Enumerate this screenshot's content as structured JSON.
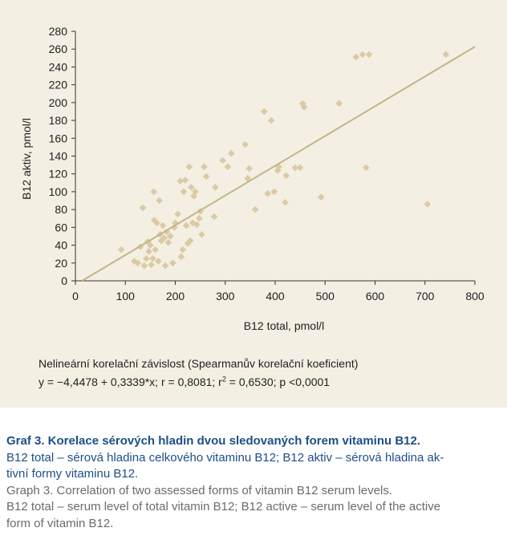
{
  "chart_data": {
    "type": "scatter",
    "xlabel": "B12 total, pmol/l",
    "ylabel": "B12 aktiv, pmol/l",
    "xlim": [
      0,
      800
    ],
    "ylim": [
      0,
      280
    ],
    "xticks": [
      0,
      100,
      200,
      300,
      400,
      500,
      600,
      700,
      800
    ],
    "yticks": [
      0,
      20,
      40,
      60,
      80,
      100,
      120,
      140,
      160,
      180,
      200,
      220,
      240,
      260,
      280
    ],
    "grid": false,
    "point_color": "#dccaa4",
    "line_color": "#c3b58a",
    "regression": {
      "intercept": -4.4478,
      "slope": 0.3339
    },
    "points": [
      {
        "x": 92,
        "y": 35
      },
      {
        "x": 118,
        "y": 22
      },
      {
        "x": 125,
        "y": 20
      },
      {
        "x": 130,
        "y": 38
      },
      {
        "x": 135,
        "y": 82
      },
      {
        "x": 138,
        "y": 17
      },
      {
        "x": 142,
        "y": 25
      },
      {
        "x": 145,
        "y": 44
      },
      {
        "x": 147,
        "y": 33
      },
      {
        "x": 150,
        "y": 40
      },
      {
        "x": 152,
        "y": 18
      },
      {
        "x": 155,
        "y": 25
      },
      {
        "x": 157,
        "y": 100
      },
      {
        "x": 158,
        "y": 68
      },
      {
        "x": 160,
        "y": 35
      },
      {
        "x": 163,
        "y": 65
      },
      {
        "x": 166,
        "y": 22
      },
      {
        "x": 168,
        "y": 90
      },
      {
        "x": 170,
        "y": 52
      },
      {
        "x": 172,
        "y": 45
      },
      {
        "x": 175,
        "y": 62
      },
      {
        "x": 178,
        "y": 48
      },
      {
        "x": 180,
        "y": 17
      },
      {
        "x": 183,
        "y": 55
      },
      {
        "x": 186,
        "y": 43
      },
      {
        "x": 190,
        "y": 50
      },
      {
        "x": 195,
        "y": 20
      },
      {
        "x": 198,
        "y": 60
      },
      {
        "x": 200,
        "y": 65
      },
      {
        "x": 205,
        "y": 75
      },
      {
        "x": 210,
        "y": 112
      },
      {
        "x": 212,
        "y": 27
      },
      {
        "x": 215,
        "y": 35
      },
      {
        "x": 217,
        "y": 100
      },
      {
        "x": 220,
        "y": 113
      },
      {
        "x": 222,
        "y": 62
      },
      {
        "x": 225,
        "y": 42
      },
      {
        "x": 228,
        "y": 128
      },
      {
        "x": 230,
        "y": 45
      },
      {
        "x": 232,
        "y": 105
      },
      {
        "x": 235,
        "y": 65
      },
      {
        "x": 237,
        "y": 95
      },
      {
        "x": 240,
        "y": 100
      },
      {
        "x": 243,
        "y": 63
      },
      {
        "x": 248,
        "y": 70
      },
      {
        "x": 250,
        "y": 78
      },
      {
        "x": 253,
        "y": 52
      },
      {
        "x": 258,
        "y": 128
      },
      {
        "x": 262,
        "y": 117
      },
      {
        "x": 278,
        "y": 72
      },
      {
        "x": 280,
        "y": 105
      },
      {
        "x": 295,
        "y": 135
      },
      {
        "x": 305,
        "y": 128
      },
      {
        "x": 312,
        "y": 143
      },
      {
        "x": 340,
        "y": 153
      },
      {
        "x": 345,
        "y": 115
      },
      {
        "x": 348,
        "y": 126
      },
      {
        "x": 360,
        "y": 80
      },
      {
        "x": 378,
        "y": 190
      },
      {
        "x": 385,
        "y": 98
      },
      {
        "x": 392,
        "y": 180
      },
      {
        "x": 398,
        "y": 100
      },
      {
        "x": 405,
        "y": 124
      },
      {
        "x": 407,
        "y": 128
      },
      {
        "x": 420,
        "y": 88
      },
      {
        "x": 422,
        "y": 118
      },
      {
        "x": 440,
        "y": 127
      },
      {
        "x": 450,
        "y": 127
      },
      {
        "x": 455,
        "y": 199
      },
      {
        "x": 458,
        "y": 195
      },
      {
        "x": 492,
        "y": 94
      },
      {
        "x": 528,
        "y": 199
      },
      {
        "x": 562,
        "y": 251
      },
      {
        "x": 575,
        "y": 254
      },
      {
        "x": 582,
        "y": 127
      },
      {
        "x": 588,
        "y": 254
      },
      {
        "x": 705,
        "y": 86
      },
      {
        "x": 742,
        "y": 254
      }
    ]
  },
  "stats": {
    "line1": "Nelineární korelační závislost (Spearmanův korelační koeficient)",
    "line2_a": "y = −4,4478 + 0,3339*x; r = 0,8081; r",
    "line2_sup": "2",
    "line2_b": " = 0,6530; p <0,0001"
  },
  "caption": {
    "title": "Graf 3. Korelace sérových hladin dvou sledovaných forem vitaminu B12.",
    "cz_line1": "B12 total – sérová hladina celkového vitaminu B12; B12 aktiv – sérová hladina ak-",
    "cz_line2": "tivní formy vitaminu B12.",
    "en_line1": "Graph 3. Correlation of two assessed forms of vitamin B12 serum levels.",
    "en_line2": "B12 total – serum level of total vitamin B12; B12 active – serum level of the active",
    "en_line3": "form of vitamin B12."
  }
}
